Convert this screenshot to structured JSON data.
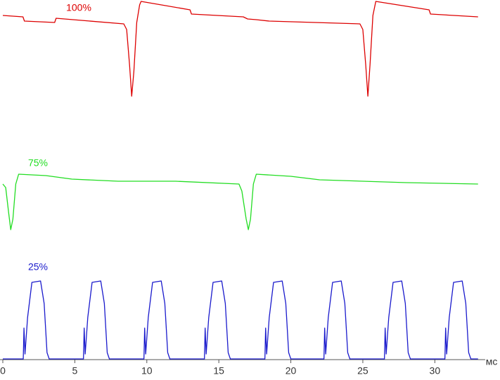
{
  "chart_data": {
    "type": "line",
    "x_label": "мс",
    "xlim": [
      0,
      33.5
    ],
    "xticks": [
      0,
      5,
      10,
      15,
      20,
      25,
      30
    ],
    "ylim": [
      0,
      512
    ],
    "series": [
      {
        "name": "100%",
        "color": "#dd0000",
        "x": [
          0,
          1.4,
          1.5,
          3.6,
          3.7,
          8.4,
          8.6,
          8.8,
          8.95,
          9.1,
          9.3,
          9.5,
          9.6,
          13,
          13.1,
          16.7,
          17,
          17.6,
          18.5,
          24.8,
          25.0,
          25.2,
          25.35,
          25.5,
          25.7,
          25.9,
          29.6,
          29.7,
          33
        ],
        "values": [
          490,
          488,
          482,
          480,
          486,
          478,
          470,
          420,
          375,
          410,
          480,
          505,
          510,
          498,
          492,
          488,
          485,
          484,
          482,
          478,
          470,
          420,
          375,
          420,
          490,
          510,
          498,
          492,
          488
        ]
      },
      {
        "name": "75%",
        "color": "#22dd22",
        "x": [
          0,
          0.2,
          0.4,
          0.55,
          0.7,
          0.9,
          1.1,
          3,
          4.8,
          8,
          12,
          16.4,
          16.6,
          16.9,
          17.05,
          17.2,
          17.4,
          17.6,
          20,
          22,
          28,
          33
        ],
        "values": [
          250,
          245,
          210,
          185,
          200,
          250,
          264,
          262,
          257,
          254,
          254,
          250,
          240,
          200,
          185,
          200,
          250,
          264,
          261,
          256,
          252,
          250
        ]
      },
      {
        "name": "25%",
        "color": "#1a1acc",
        "x": [
          0,
          1.42,
          1.47,
          1.54,
          1.72,
          2.02,
          2.62,
          2.87,
          3.07,
          3.22,
          5.6,
          5.65,
          5.72,
          5.9,
          6.2,
          6.8,
          7.05,
          7.25,
          7.4,
          9.8,
          9.85,
          9.92,
          10.1,
          10.4,
          11.0,
          11.25,
          11.45,
          11.6,
          14.0,
          14.05,
          14.12,
          14.3,
          14.6,
          15.2,
          15.45,
          15.65,
          15.8,
          18.2,
          18.25,
          18.32,
          18.5,
          18.8,
          19.4,
          19.65,
          19.85,
          20.0,
          22.3,
          22.35,
          22.42,
          22.6,
          22.9,
          23.5,
          23.75,
          23.95,
          24.1,
          26.5,
          26.55,
          26.62,
          26.8,
          27.1,
          27.7,
          27.95,
          28.15,
          28.3,
          30.7,
          30.75,
          30.82,
          31.0,
          31.3,
          31.9,
          32.15,
          32.35,
          32.5,
          33
        ],
        "values": [
          1,
          1,
          45,
          8,
          60,
          110,
          112,
          80,
          10,
          1,
          1,
          45,
          8,
          60,
          110,
          112,
          80,
          10,
          1,
          1,
          45,
          8,
          60,
          110,
          112,
          80,
          10,
          1,
          1,
          45,
          8,
          60,
          110,
          112,
          80,
          10,
          1,
          1,
          45,
          8,
          60,
          110,
          112,
          80,
          10,
          1,
          1,
          45,
          8,
          60,
          110,
          112,
          80,
          10,
          1,
          1,
          45,
          8,
          60,
          110,
          112,
          80,
          10,
          1,
          1,
          45,
          8,
          60,
          110,
          112,
          80,
          10,
          1,
          1
        ]
      }
    ]
  }
}
